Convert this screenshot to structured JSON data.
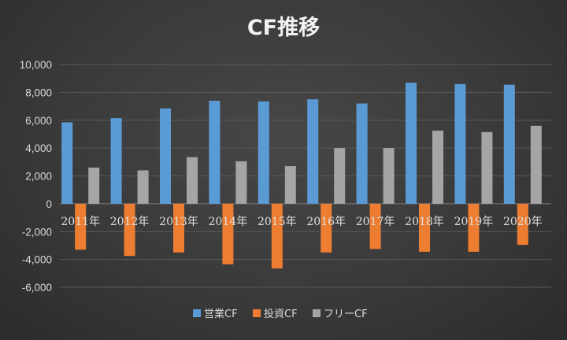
{
  "chart_data": {
    "type": "bar",
    "title": "CF推移",
    "categories": [
      "2011年",
      "2012年",
      "2013年",
      "2014年",
      "2015年",
      "2016年",
      "2017年",
      "2018年",
      "2019年",
      "2020年"
    ],
    "series": [
      {
        "name": "営業CF",
        "color": "#5b9bd5",
        "values": [
          5850,
          6150,
          6850,
          7400,
          7350,
          7500,
          7200,
          8700,
          8600,
          8550
        ]
      },
      {
        "name": "投資CF",
        "color": "#ed7d31",
        "values": [
          -3300,
          -3750,
          -3500,
          -4350,
          -4650,
          -3500,
          -3250,
          -3450,
          -3450,
          -2950
        ]
      },
      {
        "name": "フリーCF",
        "color": "#a5a5a5",
        "values": [
          2600,
          2400,
          3350,
          3050,
          2700,
          4000,
          4000,
          5250,
          5150,
          5600
        ]
      }
    ],
    "ylim": [
      -6000,
      10000
    ],
    "yticks": [
      "10,000",
      "8,000",
      "6,000",
      "4,000",
      "2,000",
      "0",
      "-2,000",
      "-4,000",
      "-6,000"
    ],
    "grid": true,
    "legend_position": "bottom"
  }
}
